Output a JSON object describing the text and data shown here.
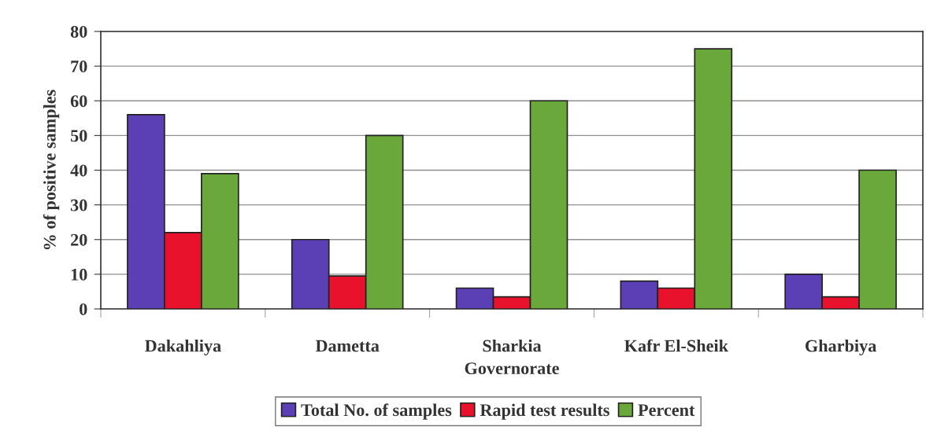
{
  "chart_data": {
    "type": "bar",
    "xlabel": "Governorate",
    "ylabel": "% of positive samples",
    "categories": [
      "Dakahliya",
      "Dametta",
      "Sharkia",
      "Kafr El-Sheik",
      "Gharbiya"
    ],
    "series": [
      {
        "name": "Total No. of samples",
        "color": "#5b3fb5",
        "values": [
          56,
          20,
          6,
          8,
          10
        ]
      },
      {
        "name": "Rapid test results",
        "color": "#e8122d",
        "values": [
          22,
          9.5,
          3.5,
          6,
          3.5
        ]
      },
      {
        "name": "Percent",
        "color": "#6aa83c",
        "values": [
          39,
          50,
          60,
          75,
          40
        ]
      }
    ],
    "ylim": [
      0,
      80
    ],
    "yticks": [
      0,
      10,
      20,
      30,
      40,
      50,
      60,
      70,
      80
    ],
    "grid": "y",
    "legend": "bottom"
  }
}
